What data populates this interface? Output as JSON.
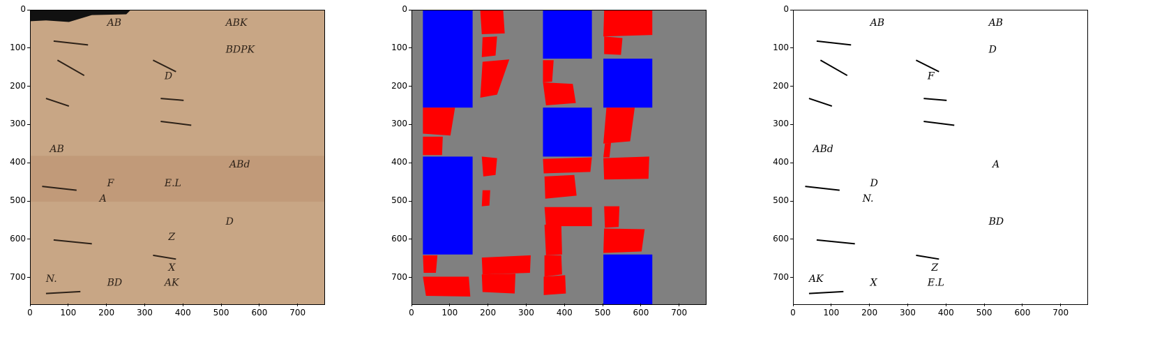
{
  "figure": {
    "panels": [
      {
        "name": "manuscript-photo",
        "extent": [
          0,
          768
        ],
        "xticks": [
          "0",
          "100",
          "200",
          "300",
          "400",
          "500",
          "600",
          "700"
        ],
        "yticks": [
          "0",
          "100",
          "200",
          "300",
          "400",
          "500",
          "600",
          "700"
        ],
        "background": "#c8a685",
        "ink_color": "#2c2118",
        "handwriting": [
          "AB",
          "ABK",
          "BDPK",
          "AB",
          "D",
          "ABd",
          "F",
          "A",
          "D",
          "N.",
          "BD",
          "AK",
          "X",
          "E.L",
          "Z"
        ]
      },
      {
        "name": "segmentation-mask",
        "extent": [
          0,
          768
        ],
        "xticks": [
          "0",
          "100",
          "200",
          "300",
          "400",
          "500",
          "600",
          "700"
        ],
        "yticks": [
          "0",
          "100",
          "200",
          "300",
          "400",
          "500",
          "600",
          "700"
        ],
        "background": "#808080",
        "class_colors": {
          "block": "#0000ff",
          "region": "#ff0000"
        },
        "blocks": [
          [
            28,
            0,
            158,
            254
          ],
          [
            28,
            382,
            158,
            638
          ],
          [
            342,
            0,
            470,
            126
          ],
          [
            342,
            254,
            470,
            382
          ],
          [
            500,
            126,
            628,
            254
          ],
          [
            500,
            638,
            628,
            768
          ]
        ],
        "regions": [
          [
            [
              28,
              254
            ],
            [
              112,
              254
            ],
            [
              100,
              327
            ],
            [
              28,
              322
            ]
          ],
          [
            [
              28,
              330
            ],
            [
              80,
              330
            ],
            [
              78,
              378
            ],
            [
              28,
              378
            ]
          ],
          [
            [
              178,
              0
            ],
            [
              238,
              0
            ],
            [
              242,
              60
            ],
            [
              182,
              62
            ]
          ],
          [
            [
              184,
              70
            ],
            [
              222,
              68
            ],
            [
              218,
              118
            ],
            [
              182,
              122
            ]
          ],
          [
            [
              184,
              134
            ],
            [
              254,
              128
            ],
            [
              222,
              220
            ],
            [
              178,
              228
            ]
          ],
          [
            [
              182,
              382
            ],
            [
              222,
              386
            ],
            [
              218,
              430
            ],
            [
              186,
              434
            ]
          ],
          [
            [
              184,
              470
            ],
            [
              204,
              470
            ],
            [
              202,
              510
            ],
            [
              182,
              512
            ]
          ],
          [
            [
              28,
              640
            ],
            [
              66,
              640
            ],
            [
              62,
              686
            ],
            [
              30,
              686
            ]
          ],
          [
            [
              28,
              696
            ],
            [
              148,
              696
            ],
            [
              152,
              748
            ],
            [
              36,
              746
            ]
          ],
          [
            [
              182,
              646
            ],
            [
              310,
              640
            ],
            [
              308,
              686
            ],
            [
              184,
              690
            ]
          ],
          [
            [
              182,
              690
            ],
            [
              270,
              688
            ],
            [
              268,
              740
            ],
            [
              184,
              736
            ]
          ],
          [
            [
              342,
              130
            ],
            [
              370,
              130
            ],
            [
              366,
              186
            ],
            [
              342,
              188
            ]
          ],
          [
            [
              342,
              188
            ],
            [
              420,
              192
            ],
            [
              428,
              242
            ],
            [
              350,
              248
            ]
          ],
          [
            [
              342,
              388
            ],
            [
              470,
              384
            ],
            [
              466,
              422
            ],
            [
              344,
              426
            ]
          ],
          [
            [
              346,
              434
            ],
            [
              424,
              430
            ],
            [
              430,
              484
            ],
            [
              348,
              492
            ]
          ],
          [
            [
              346,
              514
            ],
            [
              470,
              514
            ],
            [
              470,
              564
            ],
            [
              350,
              564
            ]
          ],
          [
            [
              346,
              560
            ],
            [
              390,
              560
            ],
            [
              392,
              638
            ],
            [
              350,
              640
            ]
          ],
          [
            [
              346,
              640
            ],
            [
              390,
              640
            ],
            [
              392,
              690
            ],
            [
              346,
              696
            ]
          ],
          [
            [
              344,
              696
            ],
            [
              400,
              692
            ],
            [
              402,
              740
            ],
            [
              344,
              744
            ]
          ],
          [
            [
              502,
              0
            ],
            [
              628,
              0
            ],
            [
              628,
              64
            ],
            [
              500,
              68
            ]
          ],
          [
            [
              502,
              68
            ],
            [
              550,
              72
            ],
            [
              546,
              116
            ],
            [
              502,
              114
            ]
          ],
          [
            [
              508,
              254
            ],
            [
              582,
              254
            ],
            [
              570,
              342
            ],
            [
              500,
              348
            ]
          ],
          [
            [
              504,
              348
            ],
            [
              520,
              346
            ],
            [
              516,
              384
            ],
            [
              500,
              384
            ]
          ],
          [
            [
              500,
              386
            ],
            [
              620,
              382
            ],
            [
              618,
              440
            ],
            [
              502,
              442
            ]
          ],
          [
            [
              502,
              512
            ],
            [
              542,
              512
            ],
            [
              540,
              566
            ],
            [
              504,
              568
            ]
          ],
          [
            [
              502,
              570
            ],
            [
              608,
              572
            ],
            [
              600,
              630
            ],
            [
              500,
              634
            ]
          ]
        ]
      },
      {
        "name": "binarized",
        "extent": [
          0,
          768
        ],
        "xticks": [
          "0",
          "100",
          "200",
          "300",
          "400",
          "500",
          "600",
          "700"
        ],
        "yticks": [
          "0",
          "100",
          "200",
          "300",
          "400",
          "500",
          "600",
          "700"
        ],
        "background": "#ffffff",
        "ink_color": "#000000",
        "handwriting": [
          "AB",
          "AB",
          "D",
          "ABd",
          "F",
          "A",
          "D",
          "N.",
          "BD",
          "AK",
          "X",
          "E.L",
          "Z"
        ]
      }
    ]
  }
}
